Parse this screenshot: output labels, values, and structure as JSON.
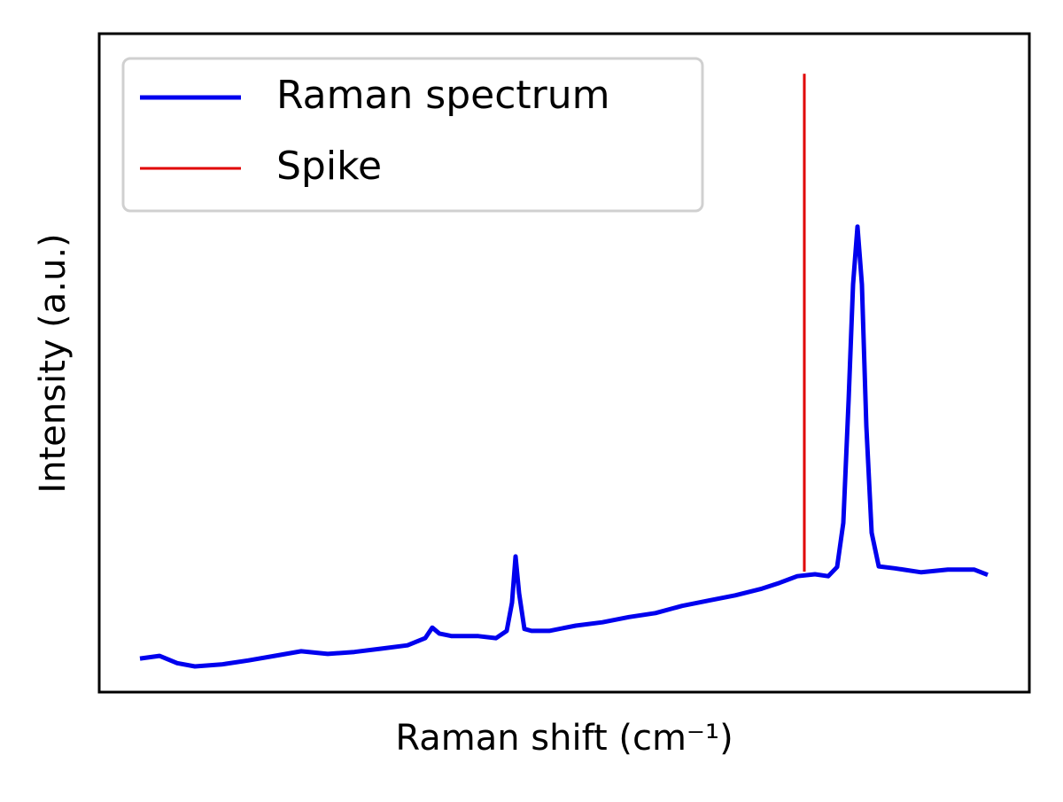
{
  "chart_data": {
    "type": "line",
    "xlabel": "Raman shift (cm⁻¹)",
    "ylabel": "Intensity (a.u.)",
    "xlim": [
      0,
      1000
    ],
    "ylim": [
      0,
      100
    ],
    "legend": "upper left",
    "series": [
      {
        "name": "Raman spectrum",
        "color": "#0000ee",
        "width": 5,
        "x": [
          43.8,
          64.8,
          83.8,
          102.9,
          131.4,
          160.0,
          188.6,
          217.1,
          245.7,
          274.3,
          302.9,
          331.4,
          350.5,
          358.1,
          365.7,
          379.0,
          407.6,
          426.7,
          438.1,
          443.8,
          447.6,
          451.4,
          457.1,
          464.8,
          483.8,
          512.4,
          541.0,
          569.5,
          598.1,
          626.7,
          655.2,
          683.8,
          712.4,
          731.4,
          750.5,
          769.5,
          783.8,
          793.3,
          800.0,
          805.7,
          810.5,
          815.2,
          820.0,
          824.8,
          830.5,
          838.1,
          855.2,
          883.8,
          912.4,
          940.9,
          955.2
        ],
        "values": [
          5.1,
          5.5,
          4.4,
          3.9,
          4.2,
          4.8,
          5.5,
          6.2,
          5.8,
          6.1,
          6.6,
          7.1,
          8.2,
          9.8,
          8.9,
          8.5,
          8.5,
          8.2,
          9.3,
          13.6,
          20.6,
          15.0,
          9.6,
          9.3,
          9.3,
          10.1,
          10.6,
          11.4,
          12.0,
          13.1,
          13.9,
          14.7,
          15.7,
          16.6,
          17.6,
          17.9,
          17.6,
          19.0,
          25.7,
          44.4,
          61.9,
          70.7,
          61.9,
          40.4,
          24.2,
          19.1,
          18.8,
          18.2,
          18.6,
          18.6,
          17.8
        ]
      },
      {
        "name": "Spike",
        "color": "#e00000",
        "width": 3,
        "x": [
          758.1,
          758.1
        ],
        "values": [
          18.3,
          93.9
        ]
      }
    ]
  }
}
